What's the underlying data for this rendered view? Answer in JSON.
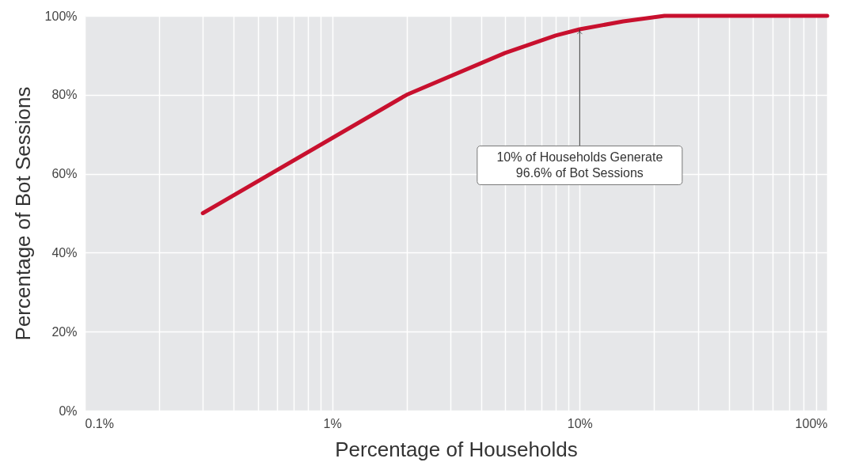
{
  "chart_data": {
    "type": "line",
    "xlabel": "Percentage of Households",
    "ylabel": "Percentage of Bot Sessions",
    "x": [
      0.3,
      2,
      5,
      8,
      10,
      15,
      22,
      100
    ],
    "series": [
      {
        "color": "#c8102e",
        "values": [
          50,
          80,
          90.6,
          95,
          96.6,
          98.6,
          100,
          100
        ]
      }
    ],
    "log": "x",
    "grid": true,
    "xlim": [
      0.1,
      100
    ],
    "xticks": [
      {
        "value": 0.1,
        "label": "0.1%"
      },
      {
        "value": 0.2,
        "label": null
      },
      {
        "value": 0.3,
        "label": null
      },
      {
        "value": 0.4,
        "label": null
      },
      {
        "value": 0.5,
        "label": null
      },
      {
        "value": 0.6,
        "label": null
      },
      {
        "value": 0.7,
        "label": null
      },
      {
        "value": 0.8,
        "label": null
      },
      {
        "value": 0.9,
        "label": null
      },
      {
        "value": 1,
        "label": "1%"
      },
      {
        "value": 2,
        "label": null
      },
      {
        "value": 3,
        "label": null
      },
      {
        "value": 4,
        "label": null
      },
      {
        "value": 5,
        "label": null
      },
      {
        "value": 6,
        "label": null
      },
      {
        "value": 7,
        "label": null
      },
      {
        "value": 8,
        "label": null
      },
      {
        "value": 9,
        "label": null
      },
      {
        "value": 10,
        "label": "10%"
      },
      {
        "value": 20,
        "label": null
      },
      {
        "value": 30,
        "label": null
      },
      {
        "value": 40,
        "label": null
      },
      {
        "value": 50,
        "label": null
      },
      {
        "value": 60,
        "label": null
      },
      {
        "value": 70,
        "label": null
      },
      {
        "value": 80,
        "label": null
      },
      {
        "value": 90,
        "label": null
      },
      {
        "value": 100,
        "label": "100%"
      }
    ],
    "ylim": [
      0,
      100
    ],
    "yticks": [
      {
        "value": 0,
        "label": "0%"
      },
      {
        "value": 20,
        "label": "20%"
      },
      {
        "value": 40,
        "label": "40%"
      },
      {
        "value": 60,
        "label": "60%"
      },
      {
        "value": 80,
        "label": "80%"
      },
      {
        "value": 100,
        "label": "100%"
      }
    ],
    "annotations": [
      {
        "text": "10% of Households Generate\n96.6% of Bot Sessions",
        "x": 10,
        "y": 96.6
      }
    ]
  }
}
